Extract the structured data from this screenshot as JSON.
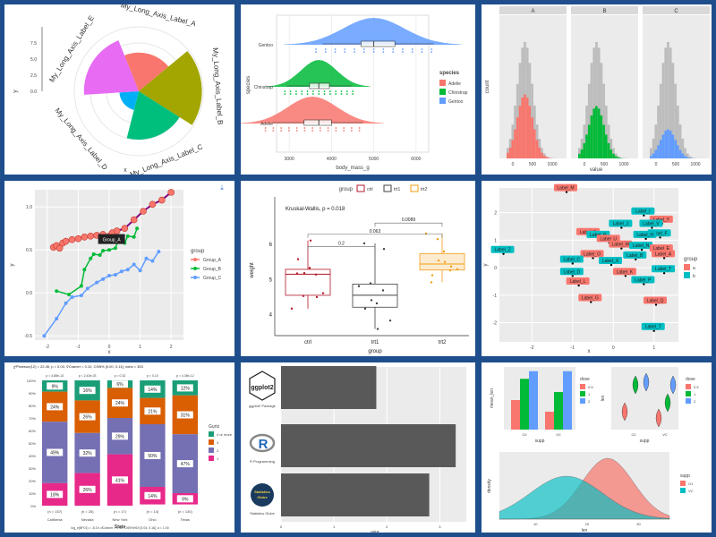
{
  "chart_data": [
    {
      "type": "polar_bar",
      "xlabel": "x",
      "ylabel": "y",
      "yticks": [
        "0.0",
        "2.5",
        "5.0",
        "7.5"
      ],
      "categories": [
        "My_Long_Axis_Label_A",
        "My_Long_Axis_Label_B",
        "My_Long_Axis_Label_C",
        "My_Long_Axis_Label_D",
        "My_Long_Axis_Label_E"
      ],
      "values": [
        6.0,
        9.8,
        7.5,
        3.0,
        8.5
      ],
      "colors": [
        "#F8766D",
        "#A3A500",
        "#00BF7D",
        "#00B0F6",
        "#E76BF3"
      ]
    },
    {
      "type": "raincloud",
      "xlabel": "body_mass_g",
      "ylabel": "species",
      "categories": [
        "Gentoo",
        "Chinstrap",
        "Adelie"
      ],
      "xticks": [
        "3000",
        "4000",
        "5000",
        "6000"
      ],
      "xlim": [
        2700,
        6300
      ],
      "series": [
        {
          "name": "Gentoo",
          "median": 5000,
          "q1": 4700,
          "q3": 5500,
          "peak": 5000
        },
        {
          "name": "Chinstrap",
          "median": 3700,
          "q1": 3480,
          "q3": 3950,
          "peak": 3700
        },
        {
          "name": "Adelie",
          "median": 3700,
          "q1": 3350,
          "q3": 4000,
          "peak": 3550
        }
      ],
      "colors": {
        "Adelie": "#F8766D",
        "Chinstrap": "#00BA38",
        "Gentoo": "#619CFF"
      },
      "legend": {
        "title": "species",
        "entries": [
          "Adelie",
          "Chinstrap",
          "Gentoo"
        ],
        "position": "right"
      }
    },
    {
      "type": "histogram",
      "facets": [
        "A",
        "B",
        "C"
      ],
      "xlabel": "value",
      "ylabel": "count",
      "xticks": [
        "0",
        "500",
        "1000"
      ],
      "colors": [
        "#F8766D",
        "#00BA38",
        "#619CFF"
      ]
    },
    {
      "type": "line",
      "xlabel": "x",
      "ylabel": "y",
      "xticks": [
        "-2",
        "-1",
        "0",
        "1",
        "2"
      ],
      "yticks": [
        "-0.5",
        "0.0",
        "0.5",
        "1.0"
      ],
      "xlim": [
        -2.4,
        2.4
      ],
      "ylim": [
        -0.55,
        1.2
      ],
      "tooltip": "Group_A",
      "legend": {
        "title": "group",
        "entries": [
          "Group_A",
          "Group_B",
          "Group_C"
        ],
        "position": "right"
      },
      "colors": [
        "#F8766D",
        "#00BA38",
        "#619CFF"
      ],
      "series": [
        {
          "name": "Group_A",
          "x": [
            -1.8,
            -1.7,
            -1.6,
            -1.5,
            -1.4,
            -1.2,
            -1.0,
            -0.8,
            -0.6,
            -0.4,
            -0.2,
            0.0,
            0.1,
            0.25,
            0.5,
            0.8,
            1.1,
            1.4,
            1.7,
            2.0
          ],
          "y": [
            0.53,
            0.55,
            0.52,
            0.58,
            0.6,
            0.62,
            0.63,
            0.65,
            0.66,
            0.67,
            0.68,
            0.66,
            0.7,
            0.72,
            0.75,
            0.85,
            0.95,
            1.03,
            1.08,
            1.17
          ]
        },
        {
          "name": "Group_B",
          "x": [
            -1.7,
            -1.3,
            -0.9,
            -0.8,
            -0.6,
            -0.5,
            -0.3,
            -0.2,
            0.0,
            0.2,
            0.3,
            0.5,
            0.6,
            0.8,
            0.9
          ],
          "y": [
            0.02,
            -0.02,
            0.08,
            0.27,
            0.4,
            0.45,
            0.44,
            0.49,
            0.5,
            0.52,
            0.62,
            0.58,
            0.66,
            0.65,
            0.75
          ]
        },
        {
          "name": "Group_C",
          "x": [
            -2.1,
            -1.7,
            -1.4,
            -1.2,
            -0.9,
            -0.7,
            -0.4,
            -0.2,
            0.0,
            0.2,
            0.4,
            0.6,
            0.8,
            1.0,
            1.2,
            1.4,
            1.6
          ],
          "y": [
            -0.5,
            -0.3,
            -0.12,
            -0.05,
            -0.03,
            0.05,
            0.12,
            0.16,
            0.2,
            0.21,
            0.25,
            0.27,
            0.33,
            0.26,
            0.4,
            0.37,
            0.48
          ]
        }
      ]
    },
    {
      "type": "boxplot",
      "title": "Kruskal-Wallis, p = 0.018",
      "xlabel": "group",
      "ylabel": "weight",
      "categories": [
        "ctrl",
        "trt1",
        "trt2"
      ],
      "yticks": [
        "4",
        "5",
        "6"
      ],
      "ylim": [
        3.4,
        7.1
      ],
      "colors": [
        "#B2182B",
        "#404040",
        "#F39C12"
      ],
      "legend": {
        "title": "group",
        "entries": [
          "ctrl",
          "trt1",
          "trt2"
        ],
        "position": "top"
      },
      "boxes": [
        {
          "min": 4.17,
          "q1": 4.55,
          "median": 5.15,
          "q3": 5.29,
          "max": 6.11
        },
        {
          "min": 3.59,
          "q1": 4.21,
          "median": 4.55,
          "q3": 4.87,
          "max": 6.03
        },
        {
          "min": 4.92,
          "q1": 5.27,
          "median": 5.44,
          "q3": 5.74,
          "max": 6.31
        }
      ],
      "points": [
        [
          4.17,
          5.58,
          5.18,
          6.11,
          4.5,
          4.61,
          5.17,
          4.53,
          5.33,
          5.14
        ],
        [
          4.81,
          4.17,
          4.41,
          3.59,
          5.87,
          3.83,
          6.03,
          4.89,
          4.32,
          4.69
        ],
        [
          6.31,
          5.12,
          5.54,
          5.5,
          5.37,
          5.29,
          4.92,
          6.15,
          5.8,
          5.26
        ]
      ],
      "comparisons": [
        {
          "label": "0.2",
          "from": 0,
          "to": 1,
          "y": 6.45
        },
        {
          "label": "0.063",
          "from": 0,
          "to": 2,
          "y": 6.8
        },
        {
          "label": "0.0089",
          "from": 1,
          "to": 2,
          "y": 7.12
        }
      ]
    },
    {
      "type": "scatter",
      "xlabel": "x",
      "ylabel": "y",
      "xticks": [
        "-2",
        "-1",
        "0",
        "1"
      ],
      "yticks": [
        "-2",
        "-1",
        "0",
        "1",
        "2"
      ],
      "xlim": [
        -2.8,
        1.6
      ],
      "ylim": [
        -2.7,
        2.9
      ],
      "legend": {
        "title": "group",
        "entries": [
          "a",
          "b"
        ],
        "position": "right"
      },
      "colors": {
        "a": "#F8766D",
        "b": "#00BFC4"
      },
      "points": [
        {
          "label": "Label_M",
          "x": -1.15,
          "y": 2.75,
          "g": "a"
        },
        {
          "label": "Label_I",
          "x": 0.75,
          "y": 1.9,
          "g": "b"
        },
        {
          "label": "Label_Y",
          "x": 1.2,
          "y": 1.6,
          "g": "a"
        },
        {
          "label": "Label_J",
          "x": 0.2,
          "y": 1.45,
          "g": "b"
        },
        {
          "label": "Label_V",
          "x": 0.95,
          "y": 1.45,
          "g": "b"
        },
        {
          "label": "Label_S",
          "x": -0.6,
          "y": 1.15,
          "g": "a"
        },
        {
          "label": "Label_R",
          "x": -0.35,
          "y": 1.05,
          "g": "b"
        },
        {
          "label": "Label_F",
          "x": 1.15,
          "y": 1.1,
          "g": "b"
        },
        {
          "label": "Label_H",
          "x": 0.8,
          "y": 1.05,
          "g": "b"
        },
        {
          "label": "Label_U",
          "x": -0.1,
          "y": 0.9,
          "g": "a"
        },
        {
          "label": "Label_W",
          "x": 0.2,
          "y": 0.7,
          "g": "a"
        },
        {
          "label": "Label_N",
          "x": 0.7,
          "y": 0.65,
          "g": "b"
        },
        {
          "label": "Label_E",
          "x": 1.2,
          "y": 0.55,
          "g": "a"
        },
        {
          "label": "Label_Z",
          "x": -2.7,
          "y": 0.5,
          "g": "b"
        },
        {
          "label": "Label_O",
          "x": -0.5,
          "y": 0.35,
          "g": "a"
        },
        {
          "label": "Label_B",
          "x": 0.55,
          "y": 0.3,
          "g": "b"
        },
        {
          "label": "Label_A",
          "x": 1.25,
          "y": 0.35,
          "g": "a"
        },
        {
          "label": "Label_C",
          "x": -1.0,
          "y": 0.15,
          "g": "b"
        },
        {
          "label": "Label_X",
          "x": -0.05,
          "y": 0.1,
          "g": "b"
        },
        {
          "label": "Label_D",
          "x": -1.0,
          "y": -0.3,
          "g": "b"
        },
        {
          "label": "Label_K",
          "x": 0.3,
          "y": -0.3,
          "g": "a"
        },
        {
          "label": "Label_T",
          "x": 1.25,
          "y": -0.2,
          "g": "b"
        },
        {
          "label": "Label_L",
          "x": -0.85,
          "y": -0.65,
          "g": "a"
        },
        {
          "label": "Label_P",
          "x": 0.75,
          "y": -0.6,
          "g": "b"
        },
        {
          "label": "Label_G",
          "x": -0.55,
          "y": -1.25,
          "g": "a"
        },
        {
          "label": "Label_Q",
          "x": 1.05,
          "y": -1.35,
          "g": "a"
        },
        {
          "label": "Label_T",
          "x": 1.0,
          "y": -2.3,
          "g": "b"
        }
      ]
    },
    {
      "type": "bar",
      "stacked": true,
      "percent": true,
      "xlabel": "State",
      "categories": [
        "California",
        "Nevada",
        "New York",
        "Ohio",
        "Texas"
      ],
      "counts": [
        "(n = 157)",
        "(n = 25)",
        "(n = 17)",
        "(n = 14)",
        "(n = 140)"
      ],
      "pvalues": [
        "p = 4.88e-13",
        "p = 2.43e-03",
        "p = 0.32",
        "p = 0.10",
        "p = 4.35e-12"
      ],
      "yticks": [
        "0%",
        "10%",
        "20%",
        "30%",
        "40%",
        "50%",
        "60%",
        "70%",
        "80%",
        "90%",
        "100%"
      ],
      "legend": {
        "title": "Gurtz",
        "entries": [
          "4 or more",
          "3",
          "2",
          "1"
        ],
        "position": "right"
      },
      "colors": [
        "#1B9E77",
        "#D95F02",
        "#7570B3",
        "#E7298A"
      ],
      "series": [
        {
          "name": "4 or more",
          "values": [
            9,
            16,
            6,
            14,
            12
          ]
        },
        {
          "name": "3",
          "values": [
            24,
            26,
            24,
            21,
            31
          ]
        },
        {
          "name": "2",
          "values": [
            49,
            32,
            29,
            50,
            47
          ]
        },
        {
          "name": "1",
          "values": [
            18,
            26,
            41,
            14,
            9
          ]
        }
      ]
    },
    {
      "type": "bar",
      "orientation": "horizontal",
      "xlabel": "value",
      "values": [
        1.8,
        3.3,
        2.8
      ],
      "color": "#595959",
      "logos": [
        {
          "name": "ggplot2",
          "caption": "ggplot2 Package"
        },
        {
          "name": "R",
          "caption": "R Programming"
        },
        {
          "name": "Statistics Globe",
          "caption": "Statistics Globe"
        }
      ]
    },
    {
      "type": "composite",
      "bar": {
        "xlabel": "supp",
        "ylabel": "mean_len",
        "categories": [
          "OJ",
          "VC"
        ],
        "series": [
          {
            "name": "0.5",
            "values": [
              13.2,
              8.0
            ]
          },
          {
            "name": "1",
            "values": [
              22.7,
              16.8
            ]
          },
          {
            "name": "2",
            "values": [
              26.1,
              26.1
            ]
          }
        ],
        "legend": {
          "title": "dose",
          "entries": [
            "0.5",
            "1",
            "2"
          ]
        }
      },
      "violin": {
        "xlabel": "supp",
        "ylabel": "len",
        "categories": [
          "OJ",
          "VC"
        ],
        "legend": {
          "title": "dose",
          "entries": [
            "0.5",
            "1",
            "2"
          ]
        }
      },
      "density": {
        "xlabel": "len",
        "ylabel": "density",
        "xticks": [
          "10",
          "20",
          "30"
        ],
        "legend": {
          "title": "supp",
          "entries": [
            "OJ",
            "VC"
          ]
        },
        "colors": {
          "OJ": "#F8766D",
          "VC": "#00BFC4"
        }
      },
      "colors": [
        "#F8766D",
        "#00BA38",
        "#619CFF"
      ]
    }
  ]
}
